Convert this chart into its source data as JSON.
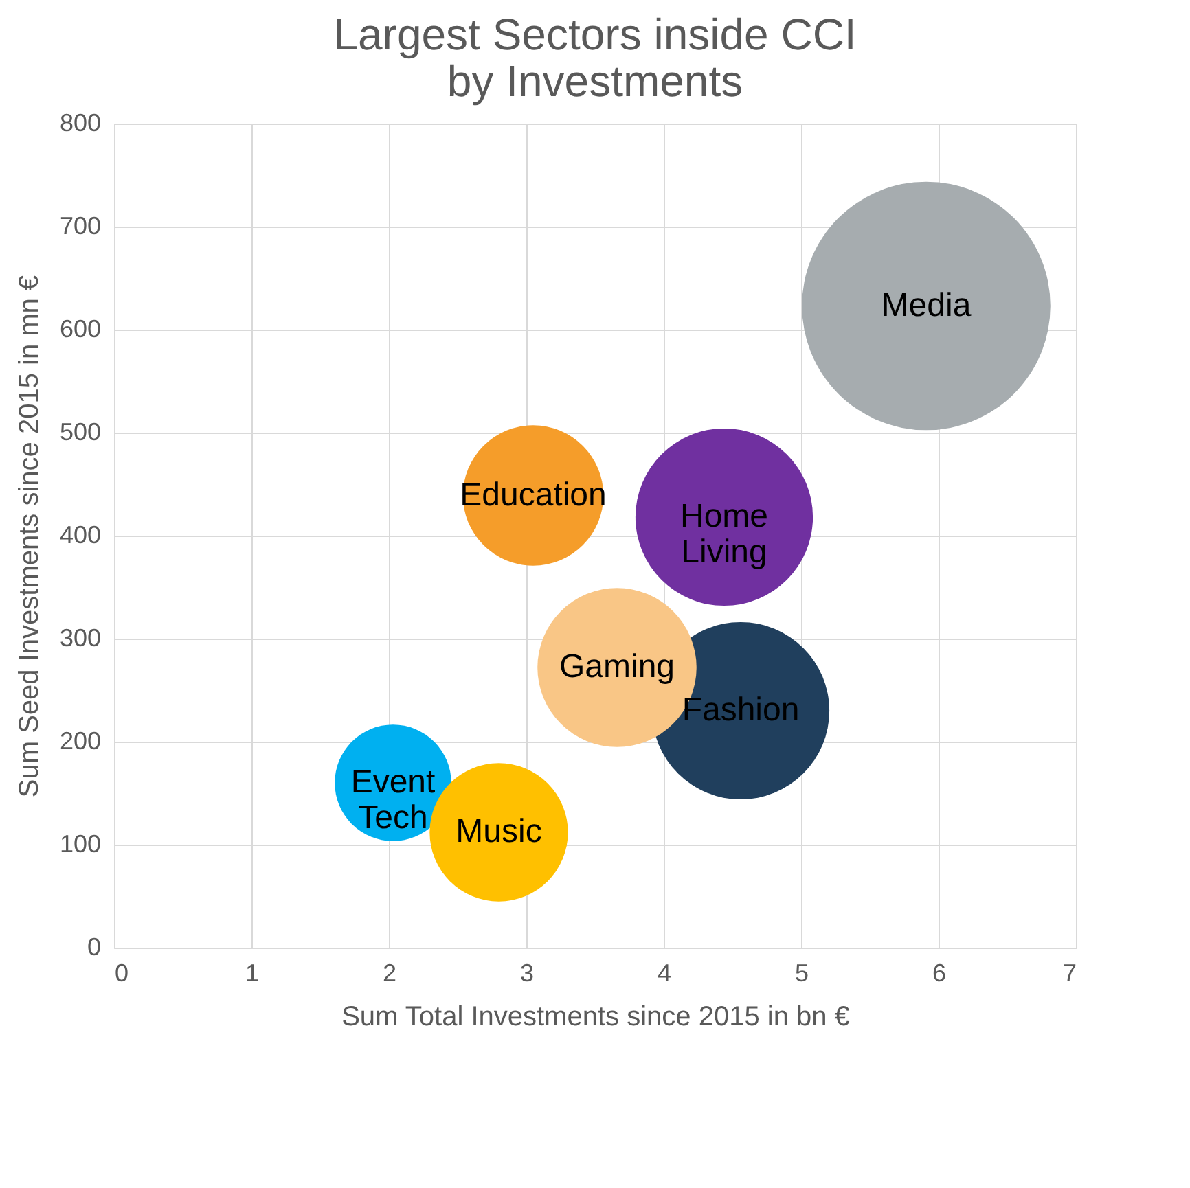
{
  "chart_data": {
    "type": "bubble",
    "title": "Largest Sectors inside CCI by Investments",
    "xlabel": "Sum Total Investments since 2015 in bn €",
    "ylabel": "Sum Seed Investments since 2015 in mn €",
    "xlim": [
      0,
      7
    ],
    "xticks": [
      0,
      1,
      2,
      3,
      4,
      5,
      6,
      7
    ],
    "ylim": [
      0,
      800
    ],
    "yticks": [
      0,
      100,
      200,
      300,
      400,
      500,
      600,
      700,
      800
    ],
    "grid": true,
    "legend": false,
    "series": [
      {
        "name": "Media",
        "color": "#a6acaf",
        "x": [
          5.91
        ],
        "values": [
          623
        ],
        "sizes": [
          1
        ]
      },
      {
        "name": "Education",
        "color": "#f59d2a",
        "x": [
          3.05
        ],
        "values": [
          439
        ],
        "sizes": [
          0.32
        ]
      },
      {
        "name": "Home Living",
        "color": "#7030a0",
        "x": [
          4.44
        ],
        "values": [
          418
        ],
        "sizes": [
          0.51
        ]
      },
      {
        "name": "Fashion",
        "color": "#203f5d",
        "x": [
          4.56
        ],
        "values": [
          230
        ],
        "sizes": [
          0.51
        ]
      },
      {
        "name": "Gaming",
        "color": "#f9c686",
        "x": [
          3.66
        ],
        "values": [
          272
        ],
        "sizes": [
          0.41
        ]
      },
      {
        "name": "Event Tech",
        "color": "#00b0f0",
        "x": [
          2.03
        ],
        "values": [
          160
        ],
        "sizes": [
          0.22
        ]
      },
      {
        "name": "Music",
        "color": "#ffc000",
        "x": [
          2.8
        ],
        "values": [
          112
        ],
        "sizes": [
          0.31
        ]
      }
    ]
  }
}
